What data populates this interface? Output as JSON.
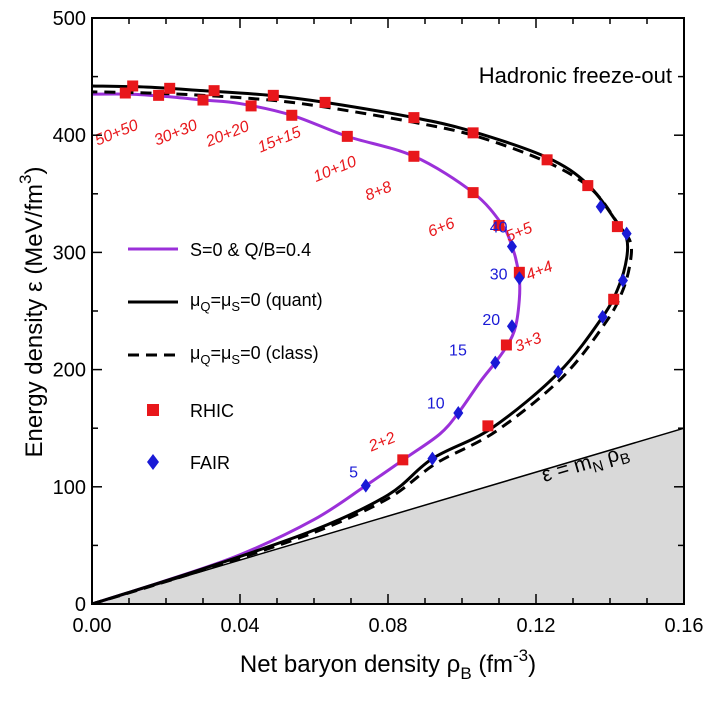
{
  "chart_data": {
    "type": "line",
    "title": "",
    "xlabel": "Net baryon density ρ_B (fm^-3)",
    "xlabel_parts": {
      "main": "Net baryon density ρ",
      "sub": "B",
      "paren": " (fm",
      "sup": "-3",
      "close": ")"
    },
    "ylabel": "Energy density ε (MeV/fm^3)",
    "ylabel_parts": {
      "main": "Energy density ε (MeV/fm",
      "sup": "3",
      "close": ")"
    },
    "xlim": [
      0.0,
      0.16
    ],
    "ylim": [
      0,
      500
    ],
    "x_ticks": [
      "0.00",
      "0.04",
      "0.08",
      "0.12",
      "0.16"
    ],
    "x_tick_values": [
      0.0,
      0.04,
      0.08,
      0.12,
      0.16
    ],
    "y_ticks": [
      "0",
      "100",
      "200",
      "300",
      "400",
      "500"
    ],
    "y_tick_values": [
      0,
      100,
      200,
      300,
      400,
      500
    ],
    "annotation": "Hadronic freeze-out",
    "line_label": {
      "main": "ε = m",
      "sub1": "N",
      "mid": " ρ",
      "sub2": "B"
    },
    "line_points": [
      [
        0.0,
        0
      ],
      [
        0.16,
        150
      ]
    ],
    "series": [
      {
        "name": "S=0 & Q/B=0.4",
        "style": "solid",
        "color": "#9b30d9",
        "points": [
          [
            0.0,
            0
          ],
          [
            0.02,
            20
          ],
          [
            0.04,
            42
          ],
          [
            0.06,
            72
          ],
          [
            0.074,
            101
          ],
          [
            0.085,
            125
          ],
          [
            0.094,
            145
          ],
          [
            0.099,
            163
          ],
          [
            0.105,
            190
          ],
          [
            0.109,
            206
          ],
          [
            0.1125,
            222
          ],
          [
            0.1145,
            237
          ],
          [
            0.1155,
            260
          ],
          [
            0.1155,
            278
          ],
          [
            0.1145,
            295
          ],
          [
            0.1135,
            305
          ],
          [
            0.111,
            323
          ],
          [
            0.103,
            351
          ],
          [
            0.087,
            382
          ],
          [
            0.069,
            399
          ],
          [
            0.054,
            417
          ],
          [
            0.04,
            427
          ],
          [
            0.03,
            430
          ],
          [
            0.02,
            433
          ],
          [
            0.01,
            435
          ],
          [
            0.0,
            435
          ]
        ]
      },
      {
        "name": "μQ=μS=0 (quant)",
        "legend": {
          "a": "μ",
          "sa": "Q",
          "b": "=μ",
          "sb": "S",
          "c": "=0 (quant)"
        },
        "style": "solid",
        "color": "#000000",
        "points": [
          [
            0.0,
            0
          ],
          [
            0.03,
            30
          ],
          [
            0.06,
            63
          ],
          [
            0.08,
            93
          ],
          [
            0.092,
            124
          ],
          [
            0.108,
            150
          ],
          [
            0.126,
            197
          ],
          [
            0.138,
            245
          ],
          [
            0.1425,
            272
          ],
          [
            0.1445,
            295
          ],
          [
            0.1445,
            312
          ],
          [
            0.142,
            325
          ],
          [
            0.134,
            358
          ],
          [
            0.123,
            381
          ],
          [
            0.103,
            403
          ],
          [
            0.087,
            415
          ],
          [
            0.063,
            428
          ],
          [
            0.048,
            434
          ],
          [
            0.03,
            438
          ],
          [
            0.015,
            441
          ],
          [
            0.0,
            442
          ]
        ]
      },
      {
        "name": "μQ=μS=0 (class)",
        "legend": {
          "a": "μ",
          "sa": "Q",
          "b": "=μ",
          "sb": "S",
          "c": "=0 (class)"
        },
        "style": "dashed",
        "color": "#000000",
        "points": [
          [
            0.0,
            0
          ],
          [
            0.03,
            29
          ],
          [
            0.06,
            61
          ],
          [
            0.08,
            90
          ],
          [
            0.093,
            120
          ],
          [
            0.109,
            147
          ],
          [
            0.127,
            193
          ],
          [
            0.139,
            241
          ],
          [
            0.1435,
            268
          ],
          [
            0.1455,
            292
          ],
          [
            0.1455,
            309
          ],
          [
            0.1425,
            323
          ],
          [
            0.135,
            354
          ],
          [
            0.123,
            377
          ],
          [
            0.104,
            399
          ],
          [
            0.087,
            411
          ],
          [
            0.063,
            424
          ],
          [
            0.048,
            430
          ],
          [
            0.03,
            434
          ],
          [
            0.015,
            436
          ],
          [
            0.0,
            437
          ]
        ]
      }
    ],
    "rhic_points": {
      "name": "RHIC",
      "color": "#e8171b",
      "points": [
        [
          0.009,
          436
        ],
        [
          0.011,
          442
        ],
        [
          0.018,
          434
        ],
        [
          0.021,
          440
        ],
        [
          0.03,
          430
        ],
        [
          0.033,
          438
        ],
        [
          0.043,
          425
        ],
        [
          0.049,
          434
        ],
        [
          0.054,
          417
        ],
        [
          0.063,
          428
        ],
        [
          0.069,
          399
        ],
        [
          0.087,
          382
        ],
        [
          0.087,
          415
        ],
        [
          0.103,
          351
        ],
        [
          0.103,
          402
        ],
        [
          0.11,
          323
        ],
        [
          0.123,
          379
        ],
        [
          0.1155,
          283
        ],
        [
          0.134,
          357
        ],
        [
          0.112,
          221
        ],
        [
          0.142,
          322
        ],
        [
          0.141,
          260
        ],
        [
          0.084,
          123
        ],
        [
          0.107,
          152
        ]
      ]
    },
    "fair_points": {
      "name": "FAIR",
      "color": "#1a1ad6",
      "points": [
        [
          0.074,
          101
        ],
        [
          0.092,
          124
        ],
        [
          0.099,
          163
        ],
        [
          0.109,
          206
        ],
        [
          0.1135,
          237
        ],
        [
          0.1155,
          278
        ],
        [
          0.1135,
          305
        ],
        [
          0.126,
          198
        ],
        [
          0.138,
          245
        ],
        [
          0.1435,
          276
        ],
        [
          0.1445,
          316
        ],
        [
          0.1375,
          339
        ]
      ]
    },
    "rhic_labels": [
      {
        "text": "50+50",
        "x": 0.0015,
        "y": 391
      },
      {
        "text": "30+30",
        "x": 0.0175,
        "y": 391
      },
      {
        "text": "20+20",
        "x": 0.0315,
        "y": 390
      },
      {
        "text": "15+15",
        "x": 0.0455,
        "y": 385
      },
      {
        "text": "10+10",
        "x": 0.0605,
        "y": 360
      },
      {
        "text": "8+8",
        "x": 0.0745,
        "y": 344
      },
      {
        "text": "6+6",
        "x": 0.0915,
        "y": 313
      },
      {
        "text": "5+5",
        "x": 0.1125,
        "y": 309
      },
      {
        "text": "4+4",
        "x": 0.118,
        "y": 276
      },
      {
        "text": "3+3",
        "x": 0.115,
        "y": 215
      },
      {
        "text": "2+2",
        "x": 0.0755,
        "y": 130
      }
    ],
    "fair_labels": [
      {
        "text": "40",
        "x": 0.1075,
        "y": 317
      },
      {
        "text": "30",
        "x": 0.1075,
        "y": 277
      },
      {
        "text": "20",
        "x": 0.1055,
        "y": 238
      },
      {
        "text": "15",
        "x": 0.0965,
        "y": 212
      },
      {
        "text": "10",
        "x": 0.0905,
        "y": 167
      },
      {
        "text": "5",
        "x": 0.0695,
        "y": 108
      }
    ],
    "legend": [
      {
        "label": "S=0 & Q/B=0.4",
        "kind": "line",
        "style": "solid",
        "color": "#9b30d9"
      },
      {
        "label_ref": 1,
        "kind": "line",
        "style": "solid",
        "color": "#000000"
      },
      {
        "label_ref": 2,
        "kind": "line",
        "style": "dashed",
        "color": "#000000"
      },
      {
        "label": "RHIC",
        "kind": "square",
        "color": "#e8171b"
      },
      {
        "label": "FAIR",
        "kind": "diamond",
        "color": "#1a1ad6"
      }
    ],
    "legend_position": "left-middle",
    "grid": false
  }
}
